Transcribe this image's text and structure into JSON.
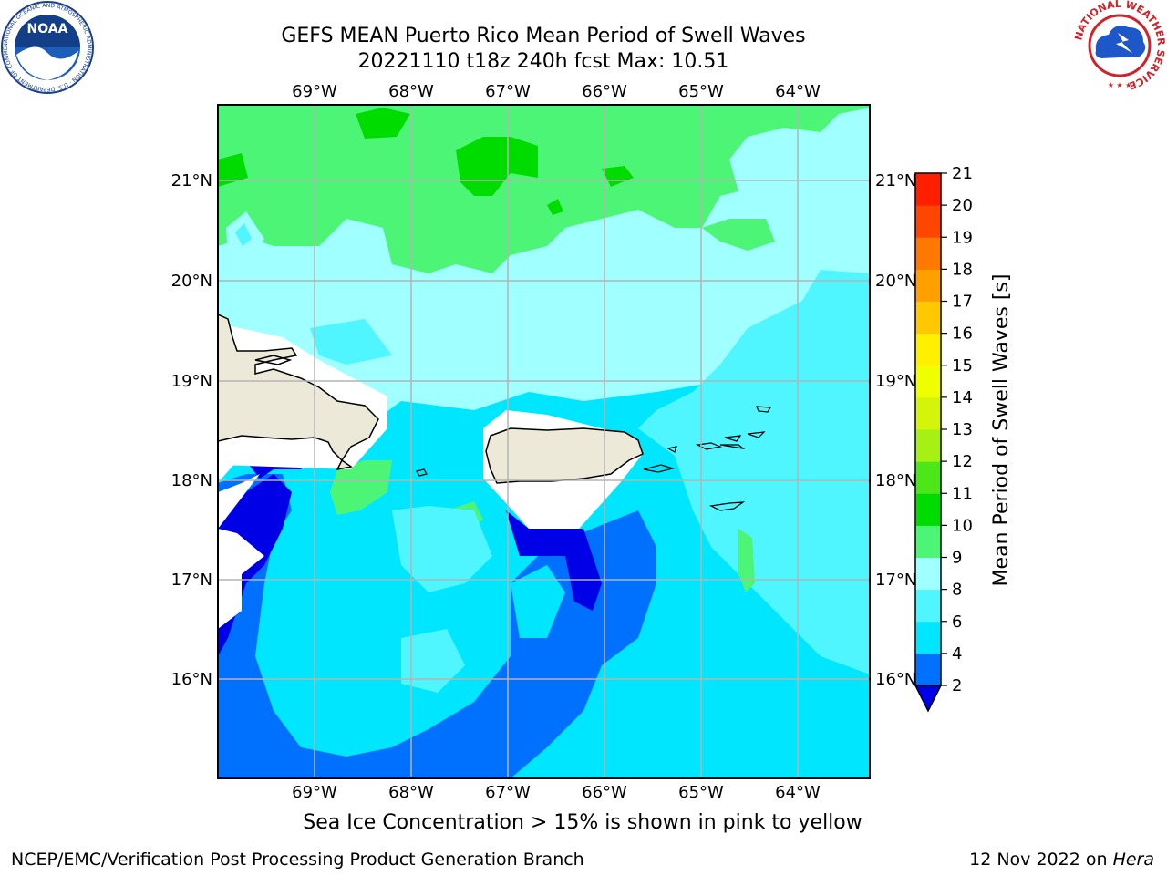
{
  "title": {
    "line1": "GEFS MEAN Puerto Rico Mean Period of Swell Waves",
    "line2": "20221110 t18z 240h fcst   Max: 10.51"
  },
  "map": {
    "lon_ticks": [
      "69°W",
      "68°W",
      "67°W",
      "66°W",
      "65°W",
      "64°W"
    ],
    "lat_ticks": [
      "21°N",
      "20°N",
      "19°N",
      "18°N",
      "17°N",
      "16°N"
    ],
    "note": "Sea Ice Concentration > 15% is shown in pink to yellow"
  },
  "colorbar": {
    "label": "Mean Period of Swell Waves [s]",
    "ticks": [
      "2",
      "4",
      "6",
      "8",
      "9",
      "10",
      "11",
      "12",
      "13",
      "14",
      "15",
      "16",
      "17",
      "18",
      "19",
      "20",
      "21"
    ],
    "colors": [
      "#0000e6",
      "#0070ff",
      "#00e6ff",
      "#4ff5ff",
      "#a0ffff",
      "#4cf576",
      "#00dc00",
      "#4de619",
      "#a6f014",
      "#d4f50a",
      "#f0ff00",
      "#fff000",
      "#ffc800",
      "#ffa000",
      "#ff7800",
      "#ff4600",
      "#ff1e00",
      "#ff0000"
    ]
  },
  "logos": {
    "noaa": "NOAA",
    "noaa_ring": "NATIONAL OCEANIC AND ATMOSPHERIC ADMINISTRATION · U.S. DEPARTMENT OF COMMERCE",
    "nws_ring": "NATIONAL WEATHER SERVICE"
  },
  "footer": {
    "left": "NCEP/EMC/Verification Post Processing Product Generation Branch",
    "right_date": "12 Nov 2022 on",
    "right_host": "Hera"
  }
}
